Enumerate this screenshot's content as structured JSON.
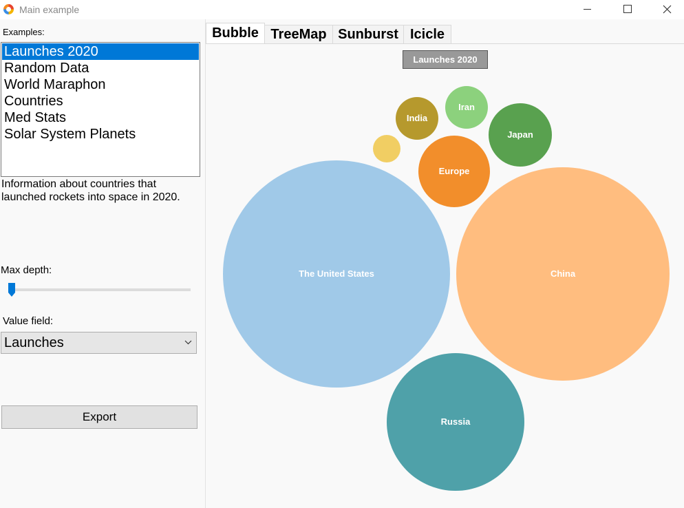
{
  "window": {
    "title": "Main example"
  },
  "sidebar": {
    "examples_label": "Examples:",
    "examples": [
      "Launches 2020",
      "Random Data",
      "World Maraphon",
      "Countries",
      "Med Stats",
      "Solar System Planets"
    ],
    "selected_index": 0,
    "description": "Information about countries that launched rockets into space in 2020.",
    "max_depth_label": "Max depth:",
    "max_depth_level": 0,
    "value_field_label": "Value field:",
    "value_field_value": "Launches",
    "export_label": "Export"
  },
  "tabs": [
    "Bubble",
    "TreeMap",
    "Sunburst",
    "Icicle"
  ],
  "active_tab": 0,
  "chart_title": "Launches 2020",
  "chart_data": {
    "type": "bubble",
    "title": "Launches 2020",
    "nodes": [
      {
        "label": "The United States",
        "color": "#a0c9e8"
      },
      {
        "label": "China",
        "color": "#ffbd7f"
      },
      {
        "label": "Russia",
        "color": "#4fa1a9"
      },
      {
        "label": "Europe",
        "color": "#f28e2b"
      },
      {
        "label": "Japan",
        "color": "#59a14f"
      },
      {
        "label": "India",
        "color": "#b6992d"
      },
      {
        "label": "Iran",
        "color": "#8cd17d"
      },
      {
        "label": "",
        "color": "#f1ce63"
      }
    ]
  }
}
